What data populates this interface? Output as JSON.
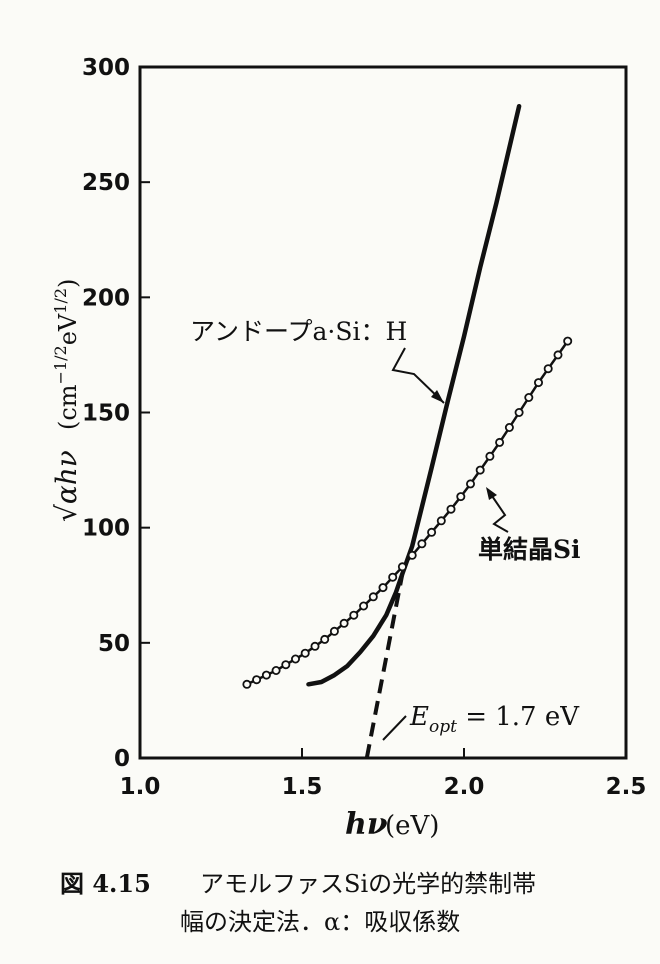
{
  "chart_data": {
    "type": "line",
    "xlabel": "hν",
    "xunit": "(eV)",
    "ylabel": "√αhν",
    "yunit_main": "(cm",
    "yunit_sup1": "−1/2",
    "yunit_mid": "eV",
    "yunit_sup2": "1/2",
    "yunit_end": ")",
    "xlim": [
      1.0,
      2.5
    ],
    "ylim": [
      0,
      300
    ],
    "xticks": [
      {
        "value": 1.0,
        "label": "1.0"
      },
      {
        "value": 1.5,
        "label": "1.5"
      },
      {
        "value": 2.0,
        "label": "2.0"
      },
      {
        "value": 2.5,
        "label": "2.5"
      }
    ],
    "yticks": [
      {
        "value": 0,
        "label": "0"
      },
      {
        "value": 50,
        "label": "50"
      },
      {
        "value": 100,
        "label": "100"
      },
      {
        "value": 150,
        "label": "150"
      },
      {
        "value": 200,
        "label": "200"
      },
      {
        "value": 250,
        "label": "250"
      },
      {
        "value": 300,
        "label": "300"
      }
    ],
    "grid": false,
    "series": [
      {
        "name": "アンドープa·Si：H",
        "style": "solid-thick",
        "x": [
          1.52,
          1.56,
          1.6,
          1.64,
          1.68,
          1.72,
          1.76,
          1.79,
          1.81,
          1.84,
          1.9,
          1.95,
          2.0,
          2.05,
          2.1,
          2.17
        ],
        "y": [
          32,
          33,
          36,
          40,
          46,
          53,
          62,
          72,
          80,
          92,
          126,
          155,
          183,
          213,
          241,
          283
        ]
      },
      {
        "name": "単結晶Si",
        "style": "open-circle-markers",
        "x": [
          1.33,
          1.36,
          1.39,
          1.42,
          1.45,
          1.48,
          1.51,
          1.54,
          1.57,
          1.6,
          1.63,
          1.66,
          1.69,
          1.72,
          1.75,
          1.78,
          1.81,
          1.84,
          1.87,
          1.9,
          1.93,
          1.96,
          1.99,
          2.02,
          2.05,
          2.08,
          2.11,
          2.14,
          2.17,
          2.2,
          2.23,
          2.26,
          2.29,
          2.32
        ],
        "y": [
          32,
          34,
          36,
          38,
          40.5,
          43,
          45.5,
          48.5,
          51.5,
          55,
          58.5,
          62,
          66,
          70,
          74,
          78.5,
          83,
          88,
          93,
          98,
          103,
          108,
          113.5,
          119,
          125,
          131,
          137,
          143.5,
          150,
          156.5,
          163,
          169,
          175,
          181
        ]
      },
      {
        "name": "extrapolation",
        "style": "dashed",
        "x": [
          1.7,
          1.81
        ],
        "y": [
          0,
          80
        ]
      }
    ],
    "annotations": [
      {
        "text": "アンドープa·Si：H",
        "target_series": 0
      },
      {
        "text": "単結晶Si",
        "target_series": 1
      },
      {
        "text_main": "E",
        "text_sub": "opt",
        "text_rest": " = 1.7 eV"
      }
    ]
  },
  "caption": {
    "figure_label": "図 4.15",
    "line1": "アモルファスSiの光学的禁制帯",
    "line2": "幅の決定法．α：吸収係数"
  }
}
